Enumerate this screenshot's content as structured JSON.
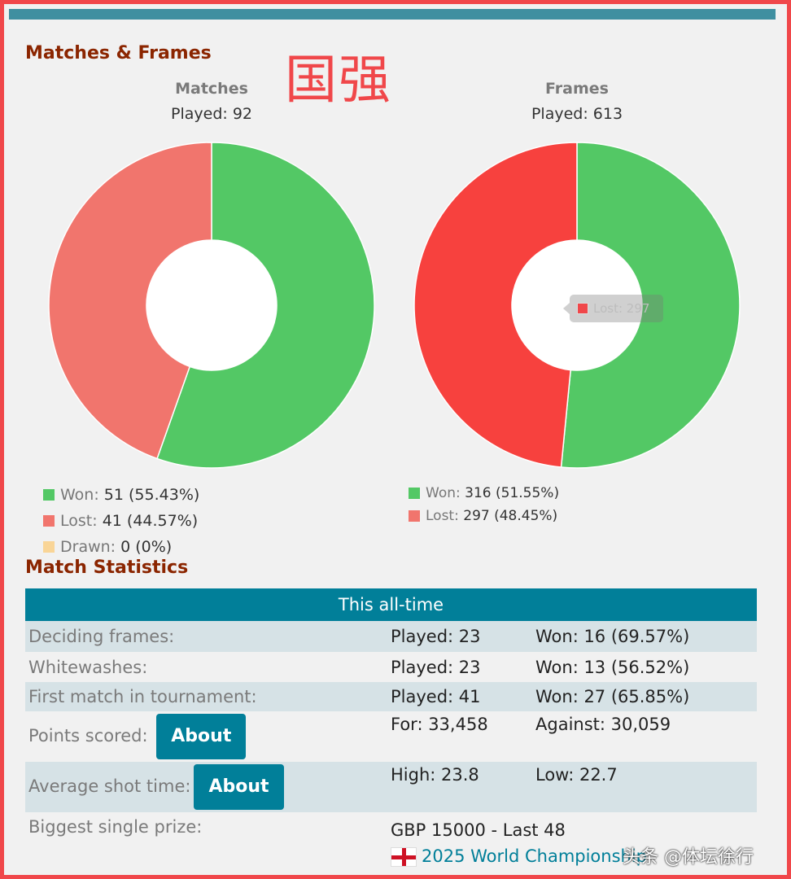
{
  "section_titles": {
    "charts": "Matches & Frames",
    "stats": "Match Statistics"
  },
  "stamp_text": "国强",
  "chart_data": [
    {
      "type": "pie",
      "title": "Matches",
      "subtitle": "Played: 92",
      "categories": [
        "Won",
        "Lost",
        "Drawn"
      ],
      "values": [
        51,
        41,
        0
      ],
      "value_labels": [
        "51 (55.43%)",
        "41 (44.57%)",
        "0 (0%)"
      ],
      "colors": [
        "#53c865",
        "#f1756d",
        "#f9d597"
      ],
      "legend_position": "bottom-left"
    },
    {
      "type": "pie",
      "title": "Frames",
      "subtitle": "Played: 613",
      "categories": [
        "Won",
        "Lost"
      ],
      "values": [
        316,
        297
      ],
      "value_labels": [
        "316 (51.55%)",
        "297 (48.45%)"
      ],
      "colors": [
        "#53c865",
        "#f7413e"
      ],
      "legend_colors": [
        "#53c865",
        "#f1756d"
      ],
      "legend_position": "bottom-left",
      "tooltip": {
        "label": "Lost: 297"
      }
    }
  ],
  "stats_table": {
    "header": "This all-time",
    "rows": [
      {
        "label": "Deciding frames:",
        "col1": "Played: 23",
        "col2": "Won: 16 (69.57%)"
      },
      {
        "label": "Whitewashes:",
        "col1": "Played: 23",
        "col2": "Won: 13 (56.52%)"
      },
      {
        "label": "First match in tournament:",
        "col1": "Played: 41",
        "col2": "Won: 27 (65.85%)"
      },
      {
        "label": "Points scored:",
        "button": "About",
        "col1": "For: 33,458",
        "col2": "Against: 30,059"
      },
      {
        "label": "Average shot time:",
        "button": "About",
        "col1": "High: 23.8",
        "col2": "Low: 22.7"
      },
      {
        "label": "Biggest single prize:",
        "col1": "GBP 15000 - Last 48",
        "link": "2025 World Championship"
      }
    ]
  },
  "watermark": "头条 @体坛徐行"
}
